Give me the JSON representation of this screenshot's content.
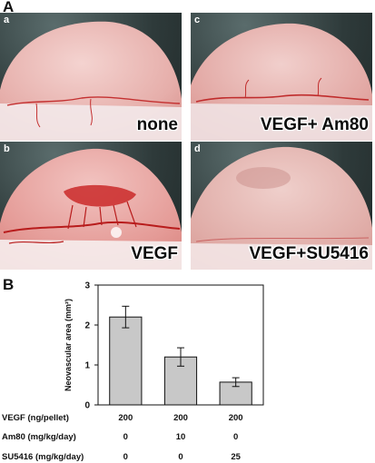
{
  "figure": {
    "panel_a_letter": "A",
    "panel_b_letter": "B",
    "photos": [
      {
        "letter": "a",
        "label": "none",
        "condition": "none"
      },
      {
        "letter": "c",
        "label": "VEGF+ Am80",
        "condition": "vegf-am80"
      },
      {
        "letter": "b",
        "label": "VEGF",
        "condition": "vegf"
      },
      {
        "letter": "d",
        "label": "VEGF+SU5416",
        "condition": "vegf-su5416"
      }
    ]
  },
  "chart_data": {
    "type": "bar",
    "categories": [
      "200 / 0 / 0",
      "200 / 10 / 0",
      "200 / 0 / 25"
    ],
    "values": [
      2.2,
      1.2,
      0.57
    ],
    "errors": [
      0.27,
      0.23,
      0.11
    ],
    "ylabel": "Neovascular area (mm²)",
    "ylim": [
      0,
      3
    ],
    "yticks": [
      "0",
      "1",
      "2",
      "3"
    ],
    "grid": false,
    "bar_color": "#c8c8c8",
    "table": {
      "rows": [
        {
          "label": "VEGF (ng/pellet)",
          "values": [
            "200",
            "200",
            "200"
          ]
        },
        {
          "label": "Am80 (mg/kg/day)",
          "values": [
            "0",
            "10",
            "0"
          ]
        },
        {
          "label": "SU5416 (mg/kg/day)",
          "values": [
            "0",
            "0",
            "25"
          ]
        }
      ]
    }
  }
}
